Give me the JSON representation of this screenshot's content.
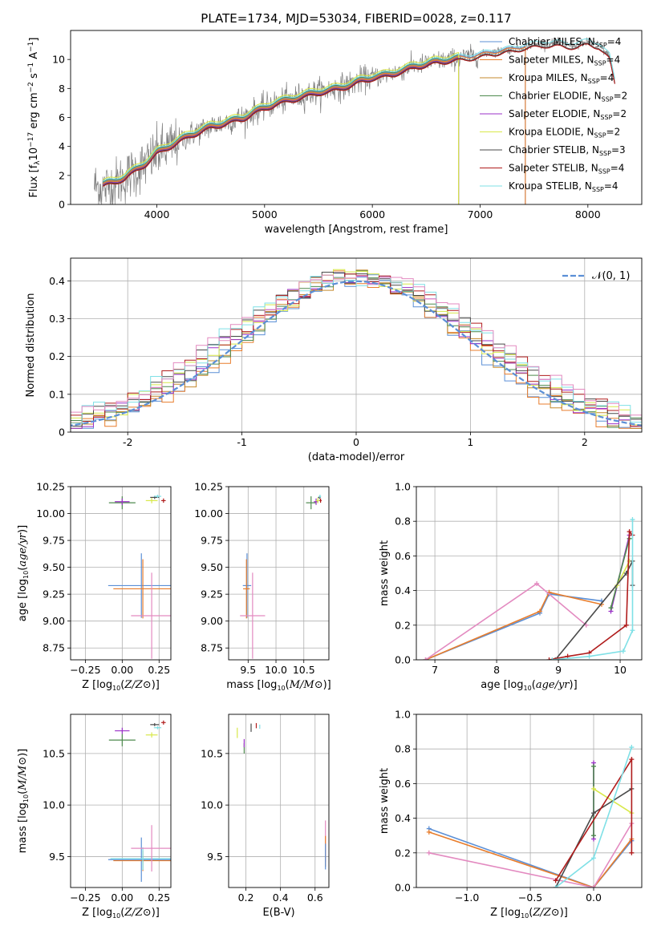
{
  "figure_title": "PLATE=1734, MJD=53034, FIBERID=0028, z=0.117",
  "colors": {
    "chabrier_miles": "#5b8fd6",
    "salpeter_miles": "#e87d2c",
    "kroupa_miles": "#c58a2e",
    "chabrier_elodie": "#4e8a4e",
    "salpeter_elodie": "#9b30c8",
    "kroupa_elodie": "#d8e84a",
    "chabrier_stelib": "#4a4a4a",
    "salpeter_stelib": "#b01c1c",
    "kroupa_stelib": "#7fe0e6",
    "pink": "#e38ac0",
    "data": "#808080",
    "gaussian": "#5b8fd6",
    "grid": "#b0b0b0"
  },
  "chart_data": [
    {
      "id": "spectrum",
      "type": "line",
      "title": "PLATE=1734, MJD=53034, FIBERID=0028, z=0.117",
      "xlabel": "wavelength [Angstrom, rest frame]",
      "ylabel_parts": [
        "Flux [f",
        "λ",
        "10",
        "−17",
        " erg cm",
        "−2",
        " s",
        "−1",
        " A",
        "−1",
        "]"
      ],
      "xlim": [
        3200,
        8500
      ],
      "ylim": [
        0,
        12
      ],
      "xticks": [
        4000,
        5000,
        6000,
        7000,
        8000
      ],
      "yticks": [
        0,
        2,
        4,
        6,
        8,
        10
      ],
      "grid": false,
      "legend_position": "top-right",
      "legend": [
        {
          "key": "chabrier_miles",
          "label": "Chabrier MILES, N",
          "sub": "SSP",
          "suffix": "=4"
        },
        {
          "key": "salpeter_miles",
          "label": "Salpeter MILES, N",
          "sub": "SSP",
          "suffix": "=4"
        },
        {
          "key": "kroupa_miles",
          "label": "Kroupa MILES, N",
          "sub": "SSP",
          "suffix": "=4"
        },
        {
          "key": "chabrier_elodie",
          "label": "Chabrier ELODIE, N",
          "sub": "SSP",
          "suffix": "=2"
        },
        {
          "key": "salpeter_elodie",
          "label": "Salpeter ELODIE, N",
          "sub": "SSP",
          "suffix": "=2"
        },
        {
          "key": "kroupa_elodie",
          "label": "Kroupa ELODIE, N",
          "sub": "SSP",
          "suffix": "=2"
        },
        {
          "key": "chabrier_stelib",
          "label": "Chabrier STELIB, N",
          "sub": "SSP",
          "suffix": "=3"
        },
        {
          "key": "salpeter_stelib",
          "label": "Salpeter STELIB, N",
          "sub": "SSP",
          "suffix": "=4"
        },
        {
          "key": "kroupa_stelib",
          "label": "Kroupa STELIB, N",
          "sub": "SSP",
          "suffix": "=4"
        }
      ],
      "data_anchors": {
        "x": [
          3420,
          3500,
          3600,
          3700,
          3800,
          3900,
          4000,
          4100,
          4200,
          4300,
          4400,
          4500,
          4600,
          4700,
          4800,
          4900,
          5000,
          5100,
          5200,
          5300,
          5400,
          5500,
          5600,
          5700,
          5800,
          5900,
          6000,
          6100,
          6200,
          6300,
          6400,
          6500,
          6600,
          6700,
          6800,
          6900,
          7000,
          7100,
          7200,
          7300,
          7400,
          7500,
          7600,
          7700,
          7800,
          7900,
          8000,
          8100,
          8200,
          8250
        ],
        "y": [
          1.3,
          1.1,
          1.4,
          1.8,
          2.3,
          2.8,
          3.5,
          3.9,
          4.3,
          4.8,
          5.1,
          5.4,
          5.6,
          5.8,
          6.0,
          6.4,
          6.7,
          7.0,
          7.2,
          7.4,
          7.6,
          7.8,
          7.9,
          8.1,
          8.3,
          8.6,
          8.8,
          8.9,
          9.1,
          9.3,
          9.6,
          9.7,
          9.9,
          10.0,
          10.1,
          10.2,
          10.3,
          10.5,
          10.6,
          10.7,
          10.9,
          11.0,
          11.1,
          11.1,
          11.0,
          11.0,
          11.2,
          11.0,
          10.2,
          8.5
        ]
      },
      "model_anchors": {
        "x": [
          3500,
          3600,
          3700,
          3800,
          3900,
          4000,
          4100,
          4200,
          4300,
          4400,
          4500,
          4600,
          4700,
          4800,
          4900,
          5000,
          5100,
          5200,
          5300,
          5400,
          5500,
          5600,
          5700,
          5800,
          5900,
          6000,
          6100,
          6200,
          6300,
          6400,
          6500,
          6600,
          6700,
          6800,
          6900,
          7000,
          7100,
          7200,
          7300,
          7400,
          7500,
          7600,
          7700,
          7800,
          7900,
          8000,
          8100,
          8200,
          8250
        ],
        "y": [
          1.4,
          1.6,
          1.9,
          2.4,
          2.9,
          3.6,
          4.0,
          4.4,
          4.8,
          5.1,
          5.4,
          5.6,
          5.8,
          6.0,
          6.4,
          6.7,
          7.0,
          7.2,
          7.4,
          7.6,
          7.8,
          7.9,
          8.1,
          8.3,
          8.6,
          8.8,
          8.9,
          9.1,
          9.3,
          9.6,
          9.7,
          9.9,
          10.0,
          10.1,
          10.2,
          10.3,
          10.5,
          10.6,
          10.7,
          10.9,
          11.0,
          11.1,
          11.1,
          11.0,
          11.0,
          11.2,
          11.0,
          10.2,
          8.5
        ]
      },
      "model_end_wavelength": {
        "kroupa_miles": 6800,
        "chabrier_elodie": 6800,
        "salpeter_elodie": 6800,
        "kroupa_elodie": 6800,
        "chabrier_miles": 7420,
        "salpeter_miles": 7420,
        "chabrier_stelib": 8250,
        "salpeter_stelib": 8250,
        "kroupa_stelib": 8250
      }
    },
    {
      "id": "residuals",
      "type": "line",
      "xlabel": "(data-model)/error",
      "ylabel": "Normed distribution",
      "xlim": [
        -2.5,
        2.5
      ],
      "ylim": [
        0,
        0.46
      ],
      "xticks": [
        -2,
        -1,
        0,
        1,
        2
      ],
      "yticks": [
        0.0,
        0.1,
        0.2,
        0.3,
        0.4
      ],
      "grid": true,
      "legend_position": "top-right",
      "legend_label": "𝒩(0, 1)",
      "reference_curve": "normal(0, 1)",
      "bin_width": 0.1
    },
    {
      "id": "age-vs-Z",
      "type": "scatter",
      "xlabel": "Z [log10(Z/Z⊙)]",
      "ylabel": "age [log10(age/yr)]",
      "xlim": [
        -0.35,
        0.33
      ],
      "ylim": [
        8.64,
        10.25
      ],
      "xticks": [
        -0.25,
        0.0,
        0.25
      ],
      "xtick_labels": [
        "−0.25",
        "0.00",
        "0.25"
      ],
      "yticks": [
        8.75,
        9.0,
        9.25,
        9.5,
        9.75,
        10.0,
        10.25
      ],
      "ytick_labels": [
        "8.75",
        "9.00",
        "9.25",
        "9.50",
        "9.75",
        "10.00",
        "10.25"
      ],
      "grid": true,
      "points": [
        {
          "key": "chabrier_miles",
          "x": 0.13,
          "y": 9.33,
          "xerr": 0.45,
          "yerr": 0.6
        },
        {
          "key": "salpeter_miles",
          "x": 0.14,
          "y": 9.3,
          "xerr": 0.4,
          "yerr": 0.55
        },
        {
          "key": "pink",
          "x": 0.2,
          "y": 9.05,
          "xerr": 0.28,
          "yerr": 0.8
        },
        {
          "key": "chabrier_elodie",
          "x": 0.0,
          "y": 10.1,
          "xerr": 0.18,
          "yerr": 0.12
        },
        {
          "key": "salpeter_elodie",
          "x": 0.0,
          "y": 10.11,
          "xerr": 0.1,
          "yerr": 0.06
        },
        {
          "key": "kroupa_elodie",
          "x": 0.2,
          "y": 10.12,
          "xerr": 0.08,
          "yerr": 0.05
        },
        {
          "key": "chabrier_stelib",
          "x": 0.22,
          "y": 10.15,
          "xerr": 0.06,
          "yerr": 0.03
        },
        {
          "key": "salpeter_stelib",
          "x": 0.28,
          "y": 10.12,
          "xerr": 0.03,
          "yerr": 0.04
        },
        {
          "key": "kroupa_stelib",
          "x": 0.24,
          "y": 10.16,
          "xerr": 0.05,
          "yerr": 0.03
        }
      ]
    },
    {
      "id": "age-vs-mass",
      "type": "scatter",
      "xlabel": "mass [log10(M/M⊙)]",
      "ylabel": "",
      "xlim": [
        9.15,
        10.95
      ],
      "ylim": [
        8.64,
        10.25
      ],
      "xticks": [
        9.5,
        10.0,
        10.5
      ],
      "xtick_labels": [
        "9.5",
        "10.0",
        "10.5"
      ],
      "yticks": [
        8.75,
        9.0,
        9.25,
        9.5,
        9.75,
        10.0,
        10.25
      ],
      "ytick_labels": [
        "8.75",
        "9.00",
        "9.25",
        "9.50",
        "9.75",
        "10.00",
        "10.25"
      ],
      "grid": true,
      "points": [
        {
          "key": "chabrier_miles",
          "x": 9.48,
          "y": 9.33,
          "xerr": 0.15,
          "yerr": 0.6
        },
        {
          "key": "salpeter_miles",
          "x": 9.47,
          "y": 9.3,
          "xerr": 0.12,
          "yerr": 0.55
        },
        {
          "key": "pink",
          "x": 9.58,
          "y": 9.05,
          "xerr": 0.45,
          "yerr": 0.8
        },
        {
          "key": "chabrier_elodie",
          "x": 10.63,
          "y": 10.1,
          "xerr": 0.18,
          "yerr": 0.12
        },
        {
          "key": "salpeter_elodie",
          "x": 10.72,
          "y": 10.11,
          "xerr": 0.08,
          "yerr": 0.06
        },
        {
          "key": "kroupa_elodie",
          "x": 10.75,
          "y": 10.12,
          "xerr": 0.06,
          "yerr": 0.05
        },
        {
          "key": "chabrier_stelib",
          "x": 10.78,
          "y": 10.15,
          "xerr": 0.05,
          "yerr": 0.03
        },
        {
          "key": "salpeter_stelib",
          "x": 10.8,
          "y": 10.12,
          "xerr": 0.04,
          "yerr": 0.04
        },
        {
          "key": "kroupa_stelib",
          "x": 10.79,
          "y": 10.16,
          "xerr": 0.04,
          "yerr": 0.03
        }
      ]
    },
    {
      "id": "mass-weight-vs-age",
      "type": "line",
      "xlabel": "age [log10(age/yr)]",
      "ylabel": "mass weight",
      "xlim": [
        6.7,
        10.35
      ],
      "ylim": [
        0,
        1
      ],
      "xticks": [
        7,
        8,
        9,
        10
      ],
      "xtick_labels": [
        "7",
        "8",
        "9",
        "10"
      ],
      "yticks": [
        0.0,
        0.2,
        0.4,
        0.6,
        0.8,
        1.0
      ],
      "ytick_labels": [
        "0.0",
        "0.2",
        "0.4",
        "0.6",
        "0.8",
        "1.0"
      ],
      "grid": true,
      "series": [
        {
          "key": "chabrier_miles",
          "x": [
            6.85,
            8.7,
            8.85,
            9.7
          ],
          "y": [
            0.0,
            0.27,
            0.38,
            0.34
          ]
        },
        {
          "key": "salpeter_miles",
          "x": [
            6.85,
            8.7,
            8.85,
            9.7
          ],
          "y": [
            0.0,
            0.28,
            0.39,
            0.32
          ]
        },
        {
          "key": "pink",
          "x": [
            6.85,
            8.65,
            9.45
          ],
          "y": [
            0.0,
            0.44,
            0.2
          ]
        },
        {
          "key": "salpeter_elodie",
          "x": [
            9.85,
            10.15
          ],
          "y": [
            0.28,
            0.72
          ]
        },
        {
          "key": "chabrier_elodie",
          "x": [
            9.85,
            10.15
          ],
          "y": [
            0.3,
            0.7
          ]
        },
        {
          "key": "kroupa_elodie",
          "x": [
            9.95,
            10.15
          ],
          "y": [
            0.43,
            0.57
          ]
        },
        {
          "key": "chabrier_stelib",
          "x": [
            8.95,
            10.1,
            10.2,
            10.2
          ],
          "y": [
            0.0,
            0.5,
            0.57,
            0.43
          ]
        },
        {
          "key": "salpeter_stelib",
          "x": [
            8.85,
            9.15,
            9.5,
            10.1,
            10.15,
            10.2
          ],
          "y": [
            0.0,
            0.02,
            0.04,
            0.2,
            0.74,
            0.72
          ]
        },
        {
          "key": "kroupa_stelib",
          "x": [
            8.9,
            9.5,
            10.05,
            10.2,
            10.2
          ],
          "y": [
            0.0,
            0.02,
            0.05,
            0.17,
            0.81
          ]
        }
      ]
    },
    {
      "id": "mass-vs-Z",
      "type": "scatter",
      "xlabel": "Z [log10(Z/Z⊙)]",
      "ylabel": "mass [log10(M/M⊙)]",
      "xlim": [
        -0.35,
        0.33
      ],
      "ylim": [
        9.2,
        10.88
      ],
      "xticks": [
        -0.25,
        0.0,
        0.25
      ],
      "xtick_labels": [
        "−0.25",
        "0.00",
        "0.25"
      ],
      "yticks": [
        9.5,
        10.0,
        10.5
      ],
      "ytick_labels": [
        "9.5",
        "10.0",
        "10.5"
      ],
      "grid": true,
      "points": [
        {
          "key": "chabrier_miles",
          "x": 0.13,
          "y": 9.47,
          "xerr": 0.45,
          "yerr": 0.43
        },
        {
          "key": "salpeter_miles",
          "x": 0.14,
          "y": 9.46,
          "xerr": 0.4,
          "yerr": 0.2
        },
        {
          "key": "kroupa_stelib",
          "x": 0.14,
          "y": 9.48,
          "xerr": 0.44,
          "yerr": 0.22
        },
        {
          "key": "pink",
          "x": 0.2,
          "y": 9.58,
          "xerr": 0.28,
          "yerr": 0.45
        },
        {
          "key": "chabrier_elodie",
          "x": 0.0,
          "y": 10.63,
          "xerr": 0.18,
          "yerr": 0.12
        },
        {
          "key": "salpeter_elodie",
          "x": 0.0,
          "y": 10.72,
          "xerr": 0.1,
          "yerr": 0.06
        },
        {
          "key": "kroupa_elodie",
          "x": 0.2,
          "y": 10.68,
          "xerr": 0.08,
          "yerr": 0.05
        },
        {
          "key": "chabrier_stelib",
          "x": 0.22,
          "y": 10.78,
          "xerr": 0.06,
          "yerr": 0.03
        },
        {
          "key": "salpeter_stelib",
          "x": 0.28,
          "y": 10.8,
          "xerr": 0.03,
          "yerr": 0.04
        },
        {
          "key": "kroupa_stelib",
          "x": 0.24,
          "y": 10.75,
          "xerr": 0.05,
          "yerr": 0.03
        }
      ]
    },
    {
      "id": "mass-vs-ebv",
      "type": "scatter",
      "xlabel": "E(B-V)",
      "ylabel": "",
      "xlim": [
        0.1,
        0.68
      ],
      "ylim": [
        9.2,
        10.88
      ],
      "xticks": [
        0.2,
        0.4,
        0.6
      ],
      "xtick_labels": [
        "0.2",
        "0.4",
        "0.6"
      ],
      "yticks": [
        9.5,
        10.0,
        10.5
      ],
      "ytick_labels": [
        "9.5",
        "10.0",
        "10.5"
      ],
      "grid": true,
      "points": [
        {
          "key": "kroupa_elodie",
          "x": 0.15,
          "y": 10.7,
          "xerr": 0.0,
          "yerr": 0.1
        },
        {
          "key": "chabrier_elodie",
          "x": 0.19,
          "y": 10.55,
          "xerr": 0.0,
          "yerr": 0.1
        },
        {
          "key": "salpeter_elodie",
          "x": 0.19,
          "y": 10.6,
          "xerr": 0.0,
          "yerr": 0.08
        },
        {
          "key": "chabrier_stelib",
          "x": 0.23,
          "y": 10.75,
          "xerr": 0.0,
          "yerr": 0.08
        },
        {
          "key": "salpeter_stelib",
          "x": 0.26,
          "y": 10.77,
          "xerr": 0.0,
          "yerr": 0.05
        },
        {
          "key": "kroupa_stelib",
          "x": 0.28,
          "y": 10.76,
          "xerr": 0.0,
          "yerr": 0.04
        },
        {
          "key": "pink",
          "x": 0.66,
          "y": 9.65,
          "xerr": 0.0,
          "yerr": 0.4
        },
        {
          "key": "salpeter_miles",
          "x": 0.66,
          "y": 9.55,
          "xerr": 0.0,
          "yerr": 0.3
        },
        {
          "key": "chabrier_miles",
          "x": 0.66,
          "y": 9.5,
          "xerr": 0.0,
          "yerr": 0.25
        }
      ]
    },
    {
      "id": "mass-weight-vs-Z",
      "type": "line",
      "xlabel": "Z [log10(Z/Z⊙)]",
      "ylabel": "mass weight",
      "xlim": [
        -1.4,
        0.38
      ],
      "ylim": [
        0,
        1
      ],
      "xticks": [
        -1.0,
        -0.5,
        0.0
      ],
      "xtick_labels": [
        "−1.0",
        "−0.5",
        "0.0"
      ],
      "yticks": [
        0.0,
        0.2,
        0.4,
        0.6,
        0.8,
        1.0
      ],
      "ytick_labels": [
        "0.0",
        "0.2",
        "0.4",
        "0.6",
        "0.8",
        "1.0"
      ],
      "grid": true,
      "series": [
        {
          "key": "chabrier_miles",
          "x": [
            -1.3,
            0.0,
            0.3
          ],
          "y": [
            0.34,
            0.0,
            0.27
          ]
        },
        {
          "key": "salpeter_miles",
          "x": [
            -1.3,
            0.0,
            0.3
          ],
          "y": [
            0.32,
            0.0,
            0.28
          ]
        },
        {
          "key": "pink",
          "x": [
            -1.3,
            0.0,
            0.3
          ],
          "y": [
            0.2,
            0.0,
            0.37
          ]
        },
        {
          "key": "salpeter_elodie",
          "x": [
            0.0,
            0.0
          ],
          "y": [
            0.28,
            0.72
          ]
        },
        {
          "key": "chabrier_elodie",
          "x": [
            0.0,
            0.0
          ],
          "y": [
            0.3,
            0.7
          ]
        },
        {
          "key": "kroupa_elodie",
          "x": [
            0.0,
            0.3
          ],
          "y": [
            0.57,
            0.43
          ]
        },
        {
          "key": "chabrier_stelib",
          "x": [
            -0.3,
            0.0,
            0.3
          ],
          "y": [
            0.0,
            0.43,
            0.57
          ]
        },
        {
          "key": "salpeter_stelib",
          "x": [
            -0.3,
            0.3,
            0.3
          ],
          "y": [
            0.04,
            0.74,
            0.2
          ]
        },
        {
          "key": "kroupa_stelib",
          "x": [
            -0.3,
            0.0,
            0.3
          ],
          "y": [
            0.0,
            0.17,
            0.81
          ]
        }
      ]
    }
  ]
}
